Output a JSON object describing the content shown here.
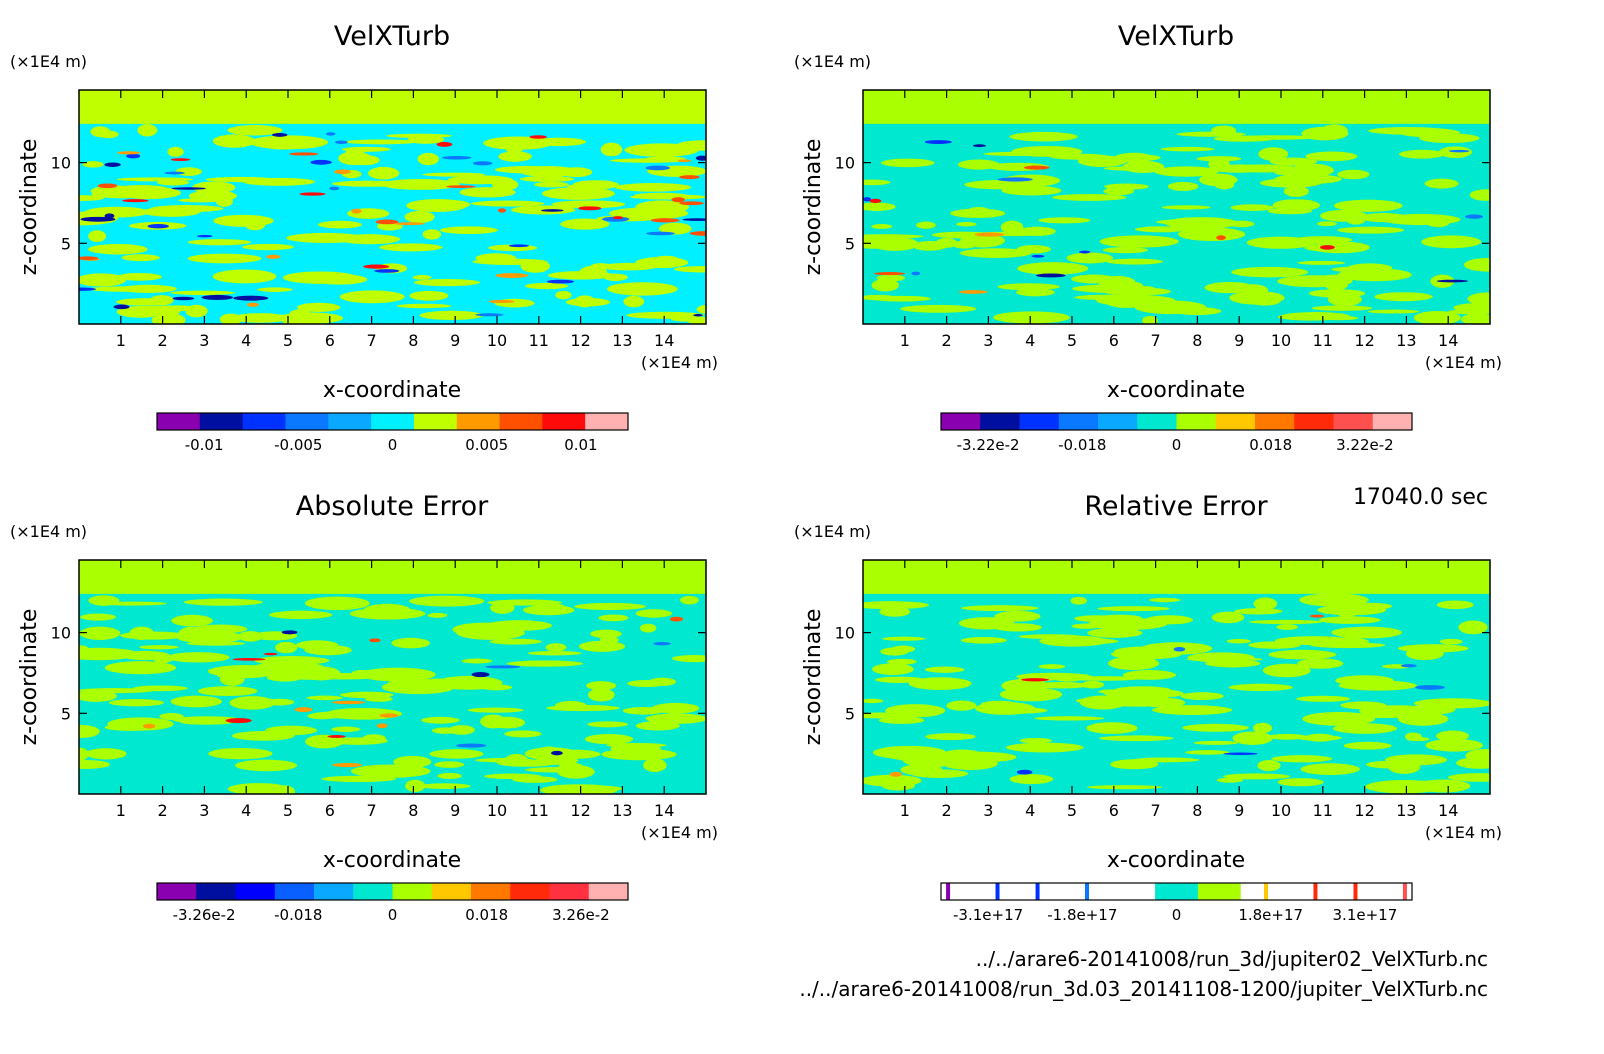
{
  "time_label": "17040.0 sec",
  "files": [
    "../../arare6-20141008/run_3d/jupiter02_VelXTurb.nc",
    "../../arare6-20141008/run_3d.03_20141108-1200/jupiter_VelXTurb.nc"
  ],
  "chart_data": [
    {
      "type": "heatmap",
      "title": "VelXTurb",
      "xlabel": "x-coordinate",
      "ylabel": "z-coordinate",
      "x_unit": "(×1E4 m)",
      "y_unit": "(×1E4 m)",
      "xlim": [
        0,
        15
      ],
      "ylim": [
        0,
        14.5
      ],
      "x_ticks": [
        1,
        2,
        3,
        4,
        5,
        6,
        7,
        8,
        9,
        10,
        11,
        12,
        13,
        14
      ],
      "y_ticks": [
        5,
        10
      ],
      "background": "#bfff00",
      "field": "#00f0ff",
      "colorbar": {
        "colors": [
          "#8a00b0",
          "#000fa0",
          "#0032ff",
          "#0a78ff",
          "#0aa8ff",
          "#00f0ff",
          "#c0ff00",
          "#ff9a00",
          "#ff5000",
          "#ff0a0a",
          "#ffb0b0"
        ],
        "tick_labels": [
          "-0.01",
          "-0.005",
          "0",
          "0.005",
          "0.01"
        ]
      }
    },
    {
      "type": "heatmap",
      "title": "VelXTurb",
      "xlabel": "x-coordinate",
      "ylabel": "z-coordinate",
      "x_unit": "(×1E4 m)",
      "y_unit": "(×1E4 m)",
      "xlim": [
        0,
        15
      ],
      "ylim": [
        0,
        14.5
      ],
      "x_ticks": [
        1,
        2,
        3,
        4,
        5,
        6,
        7,
        8,
        9,
        10,
        11,
        12,
        13,
        14
      ],
      "y_ticks": [
        5,
        10
      ],
      "background": "#aaff00",
      "field": "#00e8d0",
      "colorbar": {
        "colors": [
          "#8a00b0",
          "#000fa0",
          "#0032ff",
          "#0a78ff",
          "#0aa8ff",
          "#00e8d0",
          "#aaff00",
          "#ffc800",
          "#ff7800",
          "#ff2a0a",
          "#ff5050",
          "#ffb0b0"
        ],
        "tick_labels": [
          "-3.22e-2",
          "-0.018",
          "0",
          "0.018",
          "3.22e-2"
        ]
      }
    },
    {
      "type": "heatmap",
      "title": "Absolute Error",
      "xlabel": "x-coordinate",
      "ylabel": "z-coordinate",
      "x_unit": "(×1E4 m)",
      "y_unit": "(×1E4 m)",
      "xlim": [
        0,
        15
      ],
      "ylim": [
        0,
        14.5
      ],
      "x_ticks": [
        1,
        2,
        3,
        4,
        5,
        6,
        7,
        8,
        9,
        10,
        11,
        12,
        13,
        14
      ],
      "y_ticks": [
        5,
        10
      ],
      "background": "#aaff00",
      "field": "#00e8d0",
      "colorbar": {
        "colors": [
          "#8a00b0",
          "#000fa0",
          "#0000ff",
          "#0a60ff",
          "#0aa8ff",
          "#00e8d0",
          "#aaff00",
          "#ffc800",
          "#ff7800",
          "#ff2a0a",
          "#ff3040",
          "#ffb0b0"
        ],
        "tick_labels": [
          "-3.26e-2",
          "-0.018",
          "0",
          "0.018",
          "3.26e-2"
        ]
      }
    },
    {
      "type": "heatmap",
      "title": "Relative Error",
      "xlabel": "x-coordinate",
      "ylabel": "z-coordinate",
      "x_unit": "(×1E4 m)",
      "y_unit": "(×1E4 m)",
      "xlim": [
        0,
        15
      ],
      "ylim": [
        0,
        14.5
      ],
      "x_ticks": [
        1,
        2,
        3,
        4,
        5,
        6,
        7,
        8,
        9,
        10,
        11,
        12,
        13,
        14
      ],
      "y_ticks": [
        5,
        10
      ],
      "background": "#aaff00",
      "field": "#00e8d0",
      "colorbar": {
        "colors": [
          "#ffffff",
          "#ffffff",
          "#ffffff",
          "#ffffff",
          "#ffffff",
          "#00e8d0",
          "#aaff00",
          "#ffffff",
          "#ffffff",
          "#ffffff",
          "#ffffff"
        ],
        "tick_labels": [
          "-3.1e+17",
          "-1.8e+17",
          "0",
          "1.8e+17",
          "3.1e+17"
        ]
      }
    }
  ]
}
